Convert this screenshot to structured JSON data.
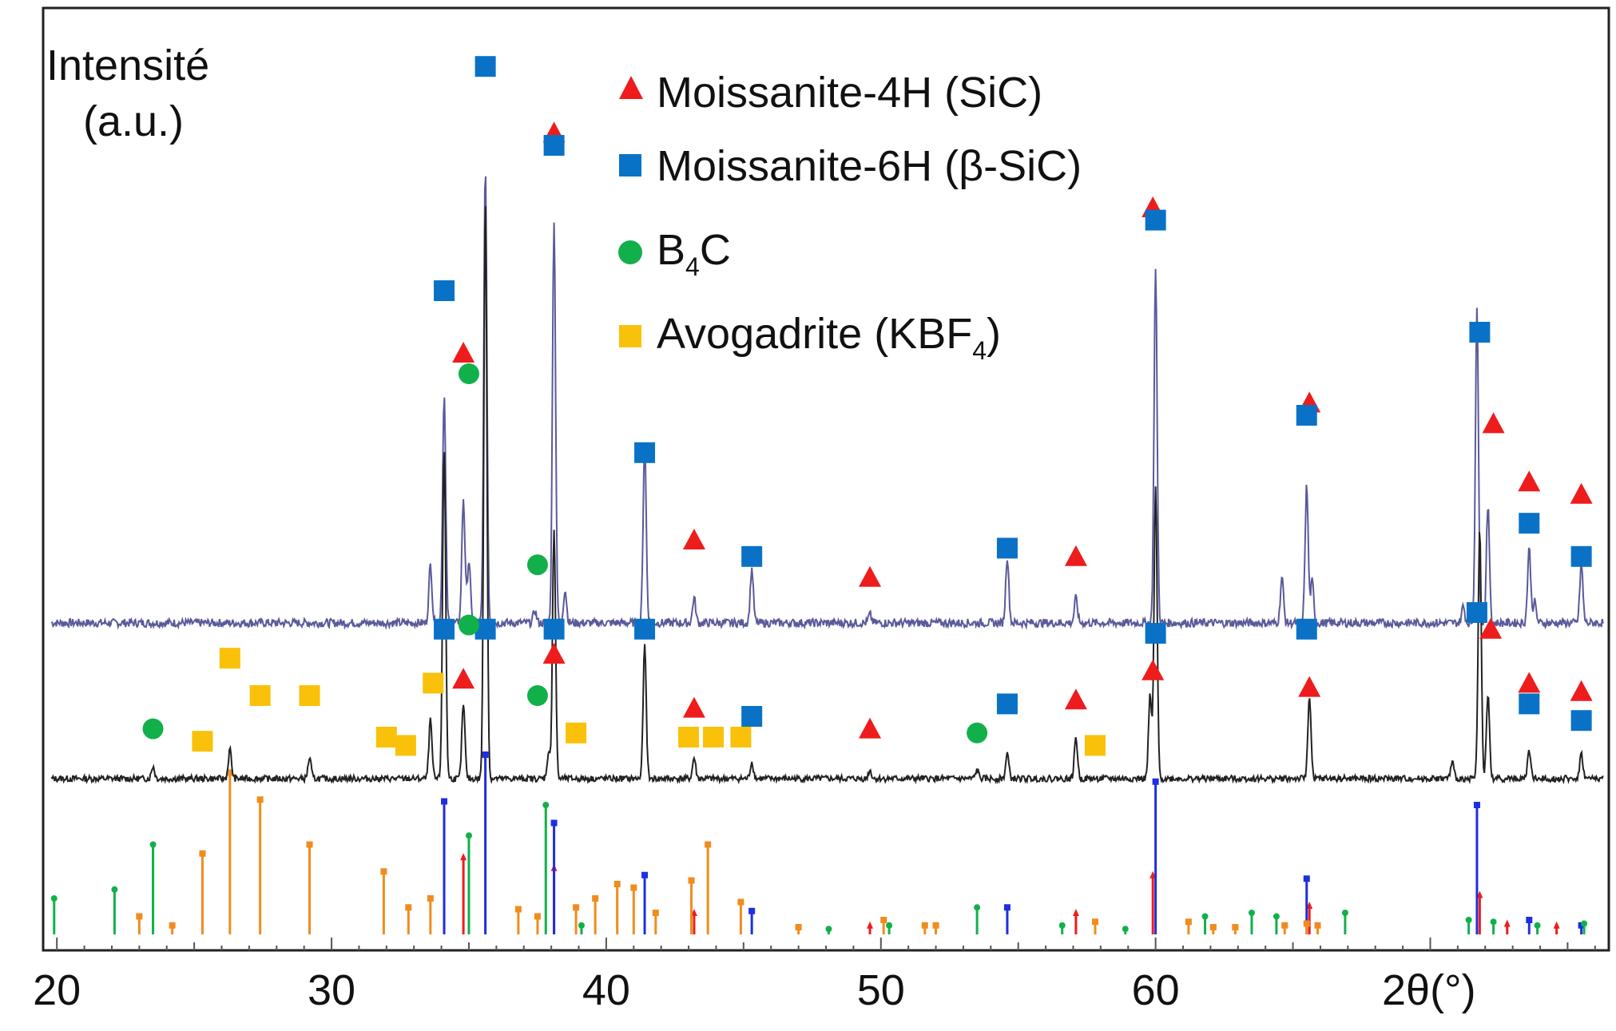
{
  "chart_data": {
    "type": "line",
    "title": "",
    "xlabel": "2θ(°)",
    "ylabel_line1": "Intensité",
    "ylabel_line2": "(a.u.)",
    "xlim": [
      19.5,
      76.5
    ],
    "x_ticks": [
      20,
      30,
      40,
      50,
      60
    ],
    "grid": false,
    "legend_position": "top-center",
    "legend": [
      {
        "key": "moissanite4h",
        "label": "Moissanite-4H (SiC)",
        "marker": "triangle",
        "color": "#ee1c1c"
      },
      {
        "key": "moissanite6h",
        "label": "Moissanite-6H (β-SiC)",
        "marker": "square",
        "color": "#0a72c6"
      },
      {
        "key": "b4c",
        "label_main": "B",
        "label_sub": "4",
        "label_tail": "C",
        "marker": "circle",
        "color": "#12b04a"
      },
      {
        "key": "avogadrite",
        "label_main": "Avogadrite (KBF",
        "label_sub": "4",
        "label_tail": ")",
        "marker": "square",
        "color": "#f9c10a"
      }
    ],
    "phases": {
      "moissanite4h": {
        "peaks": [
          34.8,
          38.1,
          43.2,
          49.6,
          57.1,
          59.9,
          65.6,
          71.8,
          72.8,
          74.6
        ],
        "ref_heights": [
          0.43,
          0.37,
          0.12,
          0.05,
          0.12,
          0.33,
          0.16,
          0.22,
          0.06,
          0.05
        ]
      },
      "moissanite6h": {
        "peaks": [
          34.1,
          35.6,
          38.1,
          41.4,
          45.3,
          54.6,
          60.0,
          65.5,
          71.7,
          73.6,
          75.5
        ],
        "ref_heights": [
          0.74,
          1.0,
          0.62,
          0.33,
          0.13,
          0.15,
          0.85,
          0.31,
          0.72,
          0.08,
          0.05
        ],
        "sample_heights": [
          0.55,
          1.1,
          0.97,
          0.43,
          0.13,
          0.16,
          0.85,
          0.33,
          0.75,
          0.18,
          0.14
        ]
      },
      "b4c": {
        "peaks": [
          19.9,
          22.1,
          23.5,
          35.0,
          37.8,
          39.1,
          48.1,
          50.3,
          53.5,
          56.6,
          58.9,
          61.8,
          63.5,
          64.4,
          66.9,
          71.4,
          72.3,
          73.9,
          75.6
        ],
        "ref_heights": [
          0.2,
          0.25,
          0.5,
          0.55,
          0.72,
          0.05,
          0.03,
          0.05,
          0.15,
          0.05,
          0.03,
          0.1,
          0.12,
          0.1,
          0.12,
          0.08,
          0.07,
          0.05,
          0.06
        ]
      },
      "avogadrite": {
        "peaks": [
          23.0,
          24.2,
          25.3,
          26.3,
          27.4,
          29.2,
          31.9,
          32.8,
          33.6,
          36.8,
          37.5,
          38.9,
          39.6,
          40.4,
          41.0,
          41.8,
          43.1,
          43.7,
          44.9,
          47.0,
          50.1,
          51.6,
          52.0,
          57.8,
          61.2,
          62.1,
          62.9,
          64.7,
          65.5,
          65.9
        ],
        "ref_heights": [
          0.1,
          0.05,
          0.45,
          0.9,
          0.75,
          0.5,
          0.35,
          0.15,
          0.2,
          0.14,
          0.1,
          0.15,
          0.2,
          0.28,
          0.26,
          0.12,
          0.3,
          0.5,
          0.18,
          0.04,
          0.08,
          0.05,
          0.05,
          0.07,
          0.07,
          0.04,
          0.04,
          0.05,
          0.06,
          0.05
        ]
      }
    },
    "series": [
      {
        "name": "upper_pattern",
        "color": "#5a5a9a",
        "baseline_y": 0.0
      },
      {
        "name": "lower_pattern",
        "color": "#222222"
      }
    ],
    "markers_upper": {
      "moissanite4h": [
        {
          "x": 34.8,
          "h": 0.65
        },
        {
          "x": 38.1,
          "h": 1.18
        },
        {
          "x": 43.2,
          "h": 0.2
        },
        {
          "x": 49.6,
          "h": 0.11
        },
        {
          "x": 57.1,
          "h": 0.16
        },
        {
          "x": 59.9,
          "h": 1.0
        },
        {
          "x": 65.6,
          "h": 0.53
        },
        {
          "x": 72.3,
          "h": 0.48
        },
        {
          "x": 73.6,
          "h": 0.34
        },
        {
          "x": 75.5,
          "h": 0.31
        }
      ],
      "moissanite6h": [
        {
          "x": 34.1,
          "h": 0.8
        },
        {
          "x": 35.6,
          "h": 1.34
        },
        {
          "x": 38.1,
          "h": 1.15
        },
        {
          "x": 41.4,
          "h": 0.41
        },
        {
          "x": 45.3,
          "h": 0.16
        },
        {
          "x": 54.6,
          "h": 0.18
        },
        {
          "x": 60.0,
          "h": 0.97
        },
        {
          "x": 65.5,
          "h": 0.5
        },
        {
          "x": 71.8,
          "h": 0.7
        },
        {
          "x": 73.6,
          "h": 0.24
        },
        {
          "x": 75.5,
          "h": 0.16
        }
      ],
      "b4c": [
        {
          "x": 35.0,
          "h": 0.6
        },
        {
          "x": 37.5,
          "h": 0.14
        }
      ]
    },
    "markers_lower": {
      "moissanite4h": [
        {
          "x": 34.8,
          "h": 0.24
        },
        {
          "x": 38.1,
          "h": 0.3
        },
        {
          "x": 43.2,
          "h": 0.17
        },
        {
          "x": 49.6,
          "h": 0.12
        },
        {
          "x": 57.1,
          "h": 0.19
        },
        {
          "x": 59.9,
          "h": 0.26
        },
        {
          "x": 65.6,
          "h": 0.22
        },
        {
          "x": 72.2,
          "h": 0.36
        },
        {
          "x": 73.6,
          "h": 0.23
        },
        {
          "x": 75.5,
          "h": 0.21
        }
      ],
      "moissanite6h": [
        {
          "x": 34.1,
          "h": 0.36
        },
        {
          "x": 35.6,
          "h": 0.36
        },
        {
          "x": 38.1,
          "h": 0.36
        },
        {
          "x": 41.4,
          "h": 0.36
        },
        {
          "x": 45.3,
          "h": 0.15
        },
        {
          "x": 54.6,
          "h": 0.18
        },
        {
          "x": 60.0,
          "h": 0.35
        },
        {
          "x": 65.5,
          "h": 0.36
        },
        {
          "x": 71.7,
          "h": 0.4
        },
        {
          "x": 73.6,
          "h": 0.18
        },
        {
          "x": 75.5,
          "h": 0.14
        }
      ],
      "b4c": [
        {
          "x": 23.5,
          "h": 0.12
        },
        {
          "x": 35.0,
          "h": 0.37
        },
        {
          "x": 37.5,
          "h": 0.2
        },
        {
          "x": 53.5,
          "h": 0.11
        }
      ],
      "avogadrite": [
        {
          "x": 25.3,
          "h": 0.09
        },
        {
          "x": 26.3,
          "h": 0.29
        },
        {
          "x": 27.4,
          "h": 0.2
        },
        {
          "x": 29.2,
          "h": 0.2
        },
        {
          "x": 32.0,
          "h": 0.1
        },
        {
          "x": 32.7,
          "h": 0.08
        },
        {
          "x": 33.7,
          "h": 0.23
        },
        {
          "x": 38.9,
          "h": 0.11
        },
        {
          "x": 43.0,
          "h": 0.1
        },
        {
          "x": 43.9,
          "h": 0.1
        },
        {
          "x": 44.9,
          "h": 0.1
        },
        {
          "x": 57.8,
          "h": 0.08
        }
      ]
    }
  }
}
